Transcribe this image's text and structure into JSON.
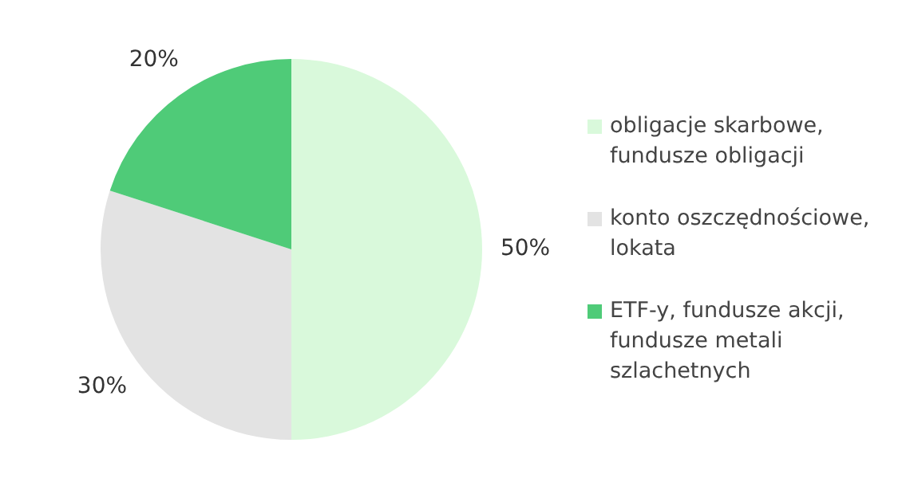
{
  "chart_data": {
    "type": "pie",
    "categories": [
      "obligacje skarbowe, fundusze obligacji",
      "konto oszczędnościowe, lokata",
      "ETF-y, fundusze akcji, fundusze metali szlachetnych"
    ],
    "values": [
      50,
      30,
      20
    ],
    "colors": [
      "#d9f9db",
      "#e3e3e3",
      "#4fcb78"
    ],
    "value_labels": [
      "50%",
      "30%",
      "20%"
    ],
    "legend": "right"
  }
}
